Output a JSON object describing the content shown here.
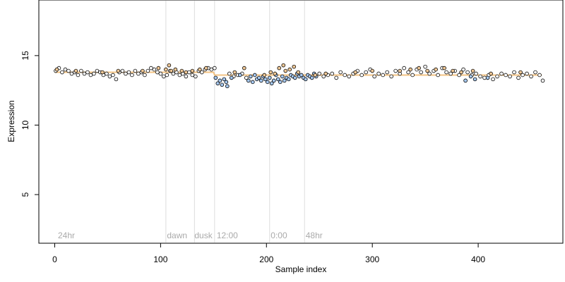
{
  "chart_data": {
    "type": "scatter",
    "title": "",
    "xlabel": "Sample index",
    "ylabel": "Expression",
    "xlim": [
      -15,
      480
    ],
    "ylim": [
      1.5,
      19
    ],
    "xticks": [
      0,
      100,
      200,
      300,
      400
    ],
    "yticks": [
      5,
      10,
      15
    ],
    "grid": false,
    "legend": "none",
    "colors": {
      "marker_black": "#000000",
      "marker_blue": "#a6c8f0",
      "marker_orange": "#f0c896",
      "separator_line": "#dddddd",
      "annotation_text": "#aaaaaa",
      "trend_line": "#f0b464"
    },
    "annotations": [
      {
        "x": 3,
        "label": "24hr"
      },
      {
        "x": 106,
        "label": "dawn"
      },
      {
        "x": 132,
        "label": "dusk"
      },
      {
        "x": 153,
        "label": "12:00"
      },
      {
        "x": 204,
        "label": "0:00"
      },
      {
        "x": 237,
        "label": "48hr"
      }
    ],
    "vertical_lines": [
      105,
      132,
      151,
      203,
      236
    ],
    "trend": [
      [
        0,
        13.8
      ],
      [
        150,
        13.8
      ],
      [
        151,
        13.6
      ],
      [
        460,
        13.6
      ]
    ],
    "series": [
      {
        "color": "black",
        "values": [
          [
            1,
            13.9
          ],
          [
            4,
            14.1
          ],
          [
            7,
            13.8
          ],
          [
            10,
            14.0
          ],
          [
            13,
            13.9
          ],
          [
            16,
            13.7
          ],
          [
            19,
            13.8
          ],
          [
            22,
            13.6
          ],
          [
            25,
            13.9
          ],
          [
            28,
            13.7
          ],
          [
            31,
            13.8
          ],
          [
            34,
            13.6
          ],
          [
            37,
            13.7
          ],
          [
            40,
            13.9
          ],
          [
            43,
            13.8
          ],
          [
            46,
            13.6
          ],
          [
            49,
            13.7
          ],
          [
            52,
            13.5
          ],
          [
            55,
            13.6
          ],
          [
            58,
            13.3
          ],
          [
            61,
            13.8
          ],
          [
            64,
            13.9
          ],
          [
            67,
            13.7
          ],
          [
            70,
            13.8
          ],
          [
            73,
            13.6
          ],
          [
            76,
            13.9
          ],
          [
            79,
            13.7
          ],
          [
            82,
            13.8
          ],
          [
            85,
            13.6
          ],
          [
            88,
            13.9
          ],
          [
            91,
            14.1
          ],
          [
            94,
            14.0
          ],
          [
            97,
            13.8
          ],
          [
            100,
            13.7
          ],
          [
            103,
            13.5
          ],
          [
            106,
            13.6
          ],
          [
            109,
            13.9
          ],
          [
            112,
            13.7
          ],
          [
            115,
            13.8
          ],
          [
            118,
            13.6
          ],
          [
            121,
            13.7
          ],
          [
            124,
            13.5
          ],
          [
            127,
            13.8
          ],
          [
            130,
            13.6
          ],
          [
            133,
            13.5
          ],
          [
            136,
            13.9
          ],
          [
            139,
            13.8
          ],
          [
            142,
            14.0
          ],
          [
            145,
            14.1
          ],
          [
            148,
            14.0
          ],
          [
            151,
            14.1
          ],
          [
            165,
            13.7
          ],
          [
            169,
            13.5
          ],
          [
            173,
            13.6
          ],
          [
            177,
            13.7
          ],
          [
            181,
            13.4
          ],
          [
            250,
            13.7
          ],
          [
            254,
            13.5
          ],
          [
            258,
            13.6
          ],
          [
            262,
            13.7
          ],
          [
            266,
            13.4
          ],
          [
            270,
            13.8
          ],
          [
            274,
            13.6
          ],
          [
            278,
            13.5
          ],
          [
            282,
            13.7
          ],
          [
            286,
            13.9
          ],
          [
            290,
            13.6
          ],
          [
            294,
            13.8
          ],
          [
            298,
            14.0
          ],
          [
            302,
            13.5
          ],
          [
            306,
            13.7
          ],
          [
            310,
            13.6
          ],
          [
            314,
            13.8
          ],
          [
            318,
            13.5
          ],
          [
            322,
            13.9
          ],
          [
            326,
            13.7
          ],
          [
            330,
            14.1
          ],
          [
            334,
            13.8
          ],
          [
            338,
            13.6
          ],
          [
            342,
            14.0
          ],
          [
            346,
            13.8
          ],
          [
            350,
            14.2
          ],
          [
            354,
            13.7
          ],
          [
            358,
            13.9
          ],
          [
            362,
            13.6
          ],
          [
            366,
            14.1
          ],
          [
            370,
            13.8
          ],
          [
            374,
            13.7
          ],
          [
            378,
            13.9
          ],
          [
            382,
            13.6
          ],
          [
            386,
            14.0
          ],
          [
            390,
            13.8
          ],
          [
            394,
            13.6
          ],
          [
            398,
            13.7
          ],
          [
            402,
            13.5
          ],
          [
            406,
            13.4
          ],
          [
            410,
            13.6
          ],
          [
            414,
            13.3
          ],
          [
            418,
            13.5
          ],
          [
            422,
            13.7
          ],
          [
            426,
            13.6
          ],
          [
            430,
            13.5
          ],
          [
            434,
            13.8
          ],
          [
            438,
            13.4
          ],
          [
            442,
            13.6
          ],
          [
            446,
            13.7
          ],
          [
            450,
            13.5
          ],
          [
            454,
            13.8
          ],
          [
            458,
            13.6
          ],
          [
            461,
            13.2
          ]
        ]
      },
      {
        "color": "blue",
        "values": [
          [
            152,
            13.4
          ],
          [
            154,
            13.0
          ],
          [
            156,
            13.2
          ],
          [
            158,
            12.9
          ],
          [
            160,
            13.3
          ],
          [
            162,
            13.1
          ],
          [
            163,
            12.8
          ],
          [
            167,
            13.4
          ],
          [
            175,
            13.6
          ],
          [
            183,
            13.2
          ],
          [
            185,
            13.5
          ],
          [
            187,
            13.1
          ],
          [
            189,
            13.6
          ],
          [
            191,
            13.3
          ],
          [
            193,
            13.4
          ],
          [
            195,
            13.2
          ],
          [
            197,
            13.5
          ],
          [
            199,
            13.3
          ],
          [
            201,
            13.1
          ],
          [
            203,
            13.4
          ],
          [
            205,
            13.0
          ],
          [
            207,
            13.2
          ],
          [
            209,
            13.6
          ],
          [
            211,
            13.3
          ],
          [
            213,
            13.1
          ],
          [
            215,
            13.5
          ],
          [
            217,
            13.2
          ],
          [
            219,
            13.4
          ],
          [
            221,
            13.3
          ],
          [
            223,
            13.6
          ],
          [
            225,
            13.5
          ],
          [
            227,
            13.4
          ],
          [
            229,
            13.7
          ],
          [
            231,
            13.5
          ],
          [
            233,
            13.6
          ],
          [
            235,
            13.4
          ],
          [
            237,
            13.3
          ],
          [
            239,
            13.6
          ],
          [
            241,
            13.5
          ],
          [
            243,
            13.4
          ],
          [
            245,
            13.7
          ],
          [
            247,
            13.5
          ],
          [
            388,
            13.2
          ],
          [
            393,
            13.5
          ],
          [
            397,
            13.3
          ],
          [
            409,
            13.4
          ]
        ]
      },
      {
        "color": "orange",
        "values": [
          [
            2,
            14.0
          ],
          [
            20,
            13.9
          ],
          [
            45,
            13.8
          ],
          [
            60,
            13.9
          ],
          [
            83,
            13.9
          ],
          [
            98,
            14.1
          ],
          [
            105,
            14.0
          ],
          [
            108,
            14.3
          ],
          [
            110,
            13.9
          ],
          [
            114,
            14.0
          ],
          [
            120,
            13.9
          ],
          [
            124,
            13.8
          ],
          [
            130,
            13.9
          ],
          [
            137,
            14.0
          ],
          [
            143,
            14.1
          ],
          [
            170,
            13.8
          ],
          [
            179,
            14.1
          ],
          [
            198,
            13.6
          ],
          [
            204,
            13.8
          ],
          [
            208,
            13.7
          ],
          [
            212,
            14.1
          ],
          [
            216,
            14.3
          ],
          [
            218,
            13.9
          ],
          [
            222,
            14.0
          ],
          [
            226,
            14.2
          ],
          [
            230,
            13.8
          ],
          [
            246,
            13.6
          ],
          [
            256,
            13.7
          ],
          [
            284,
            13.8
          ],
          [
            300,
            13.9
          ],
          [
            326,
            13.9
          ],
          [
            336,
            14.0
          ],
          [
            344,
            14.1
          ],
          [
            352,
            13.9
          ],
          [
            360,
            14.0
          ],
          [
            368,
            14.1
          ],
          [
            376,
            13.9
          ],
          [
            384,
            13.8
          ],
          [
            395,
            13.9
          ],
          [
            412,
            13.7
          ],
          [
            440,
            13.8
          ]
        ]
      }
    ]
  }
}
